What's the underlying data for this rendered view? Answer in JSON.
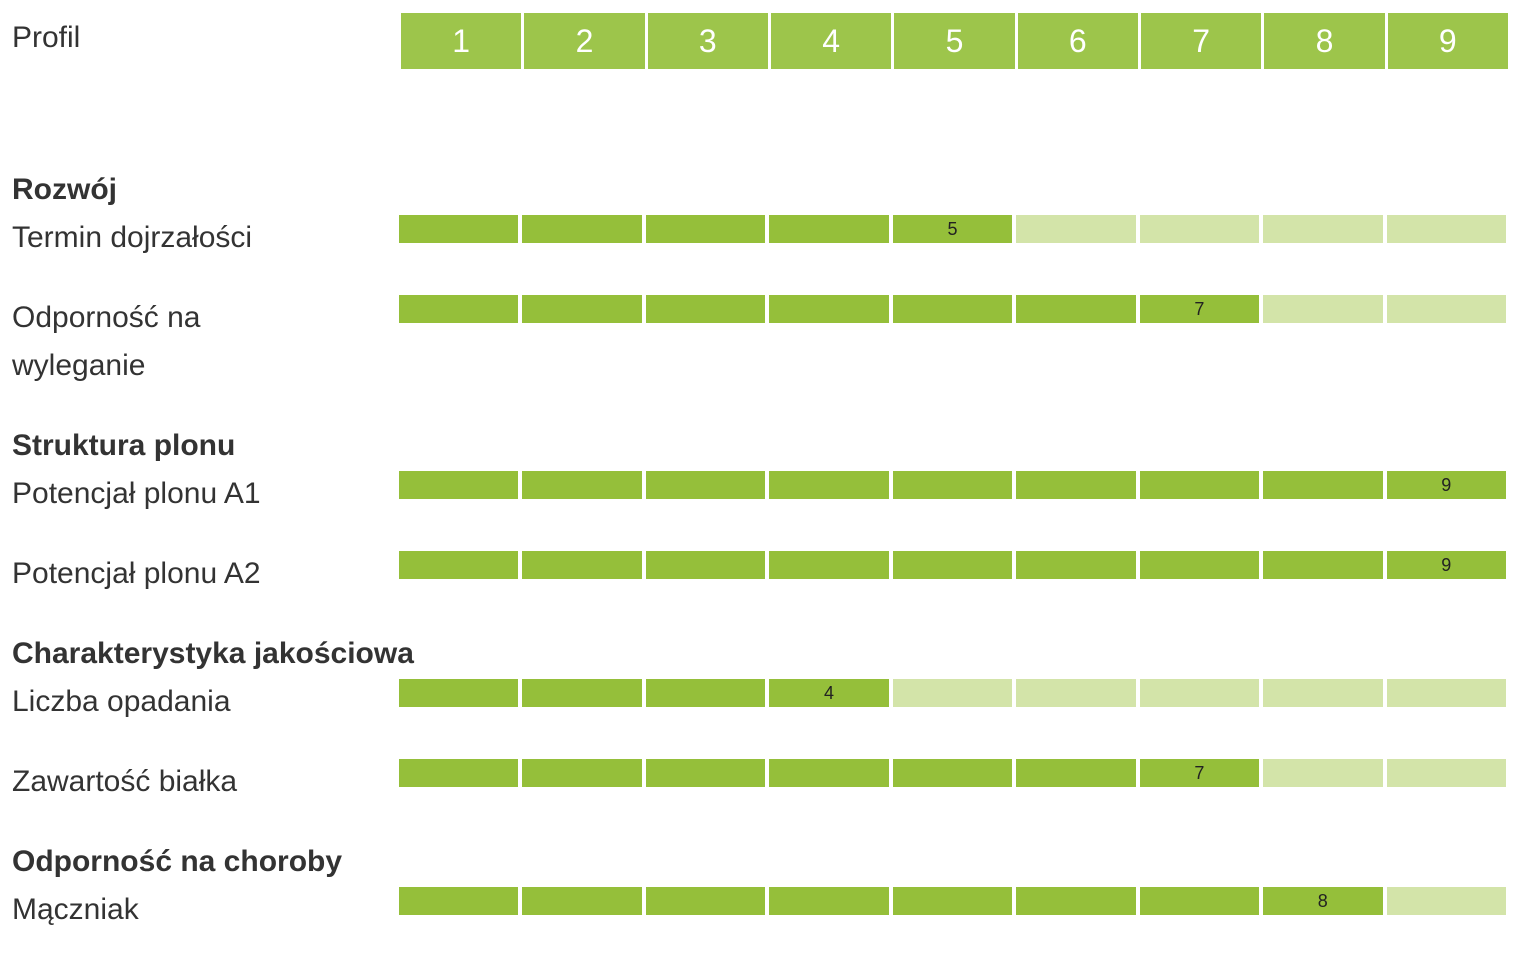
{
  "header": {
    "label": "Profil",
    "scale": [
      1,
      2,
      3,
      4,
      5,
      6,
      7,
      8,
      9
    ]
  },
  "sections": [
    {
      "title": "Rozwój",
      "items": [
        {
          "label": "Termin dojrzałości",
          "value": 5
        },
        {
          "label": "Odporność na wyleganie",
          "value": 7
        }
      ]
    },
    {
      "title": "Struktura plonu",
      "items": [
        {
          "label": "Potencjał plonu A1",
          "value": 9
        },
        {
          "label": "Potencjał plonu A2",
          "value": 9
        }
      ]
    },
    {
      "title": "Charakterystyka jakościowa",
      "items": [
        {
          "label": "Liczba opadania",
          "value": 4
        },
        {
          "label": "Zawartość białka",
          "value": 7
        }
      ]
    },
    {
      "title": "Odporność na choroby",
      "items": [
        {
          "label": "Mączniak",
          "value": 8
        }
      ]
    }
  ]
}
